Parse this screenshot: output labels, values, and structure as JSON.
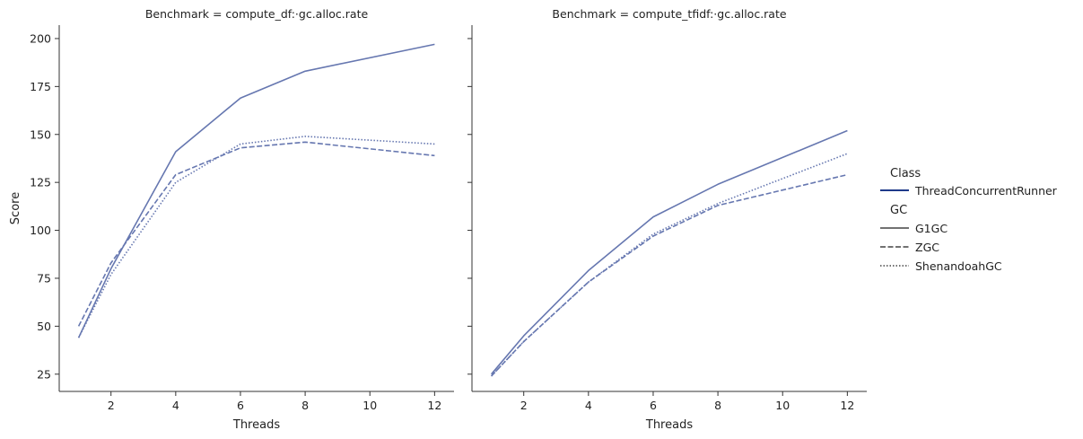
{
  "chart_data": {
    "type": "line",
    "ylabel": "Score",
    "xlabel": "Threads",
    "x_ticks": [
      2,
      4,
      6,
      8,
      10,
      12
    ],
    "y_ticks": [
      25,
      50,
      75,
      100,
      125,
      150,
      175,
      200
    ],
    "xlim": [
      0.4,
      12.6
    ],
    "ylim": [
      16,
      207
    ],
    "sharey": true,
    "grid": false,
    "color": "#6677b0",
    "legend": {
      "placement": "right",
      "class_title": "Class",
      "class_entries": [
        {
          "label": "ThreadConcurrentRunner",
          "color": "#1f3a8a"
        }
      ],
      "gc_title": "GC",
      "gc_entries": [
        {
          "label": "G1GC",
          "dash": "solid"
        },
        {
          "label": "ZGC",
          "dash": "dashed"
        },
        {
          "label": "ShenandoahGC",
          "dash": "dotted"
        }
      ]
    },
    "panels": [
      {
        "title": "Benchmark = compute_df:·gc.alloc.rate",
        "x": [
          1,
          2,
          4,
          6,
          8,
          12
        ],
        "series": [
          {
            "name": "G1GC",
            "dash": "solid",
            "values": [
              44,
              80,
              141,
              169,
              183,
              197
            ]
          },
          {
            "name": "ZGC",
            "dash": "dashed",
            "values": [
              50,
              83,
              129,
              143,
              146,
              139
            ]
          },
          {
            "name": "ShenandoahGC",
            "dash": "dotted",
            "values": [
              44,
              77,
              125,
              145,
              149,
              145
            ]
          }
        ]
      },
      {
        "title": "Benchmark = compute_tfidf:·gc.alloc.rate",
        "x": [
          1,
          2,
          4,
          6,
          8,
          12
        ],
        "series": [
          {
            "name": "G1GC",
            "dash": "solid",
            "values": [
              25,
              45,
              79,
              107,
              124,
              152
            ]
          },
          {
            "name": "ZGC",
            "dash": "dashed",
            "values": [
              24,
              42,
              73,
              97,
              113,
              129
            ]
          },
          {
            "name": "ShenandoahGC",
            "dash": "dotted",
            "values": [
              24,
              42,
              73,
              98,
              114,
              140
            ]
          }
        ]
      }
    ]
  }
}
